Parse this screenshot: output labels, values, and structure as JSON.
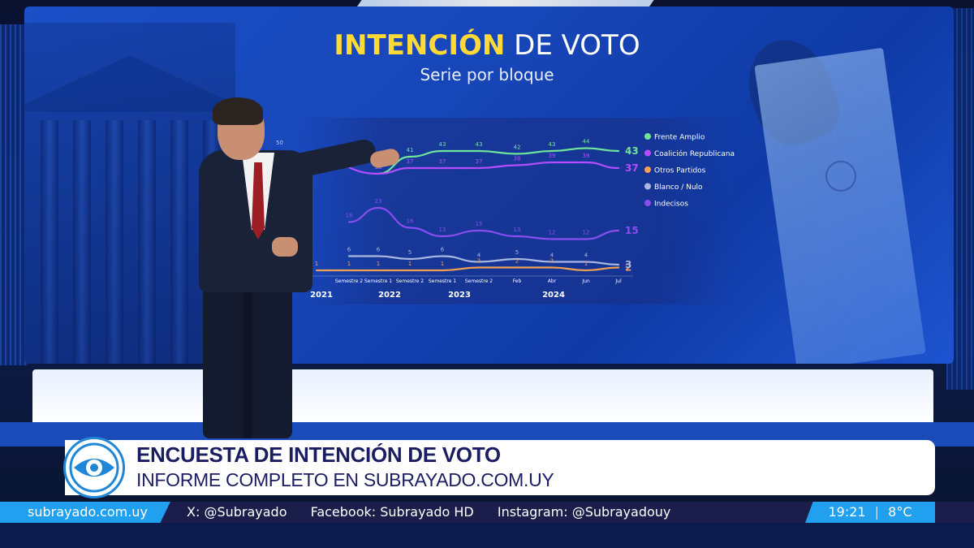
{
  "header": {
    "title_highlight": "INTENCIÓN",
    "title_rest": " DE VOTO",
    "subtitle": "Serie por bloque"
  },
  "lower_third": {
    "title": "ENCUESTA DE INTENCIÓN DE VOTO",
    "subtitle": "INFORME COMPLETO EN SUBRAYADO.COM.UY"
  },
  "ticker": {
    "site": "subrayado.com.uy",
    "items": [
      "X: @Subrayado",
      "Facebook: Subrayado HD",
      "Instagram: @Subrayadouy"
    ],
    "time": "19:21",
    "temperature": "8°C"
  },
  "colors": {
    "frente_amplio": "#6fe59a",
    "coalicion": "#b44dff",
    "otros": "#f0a050",
    "blanco_nulo": "#a9b8e0",
    "indecisos": "#8a4df0",
    "title_highlight": "#ffd936",
    "brand_blue": "#21a0f0",
    "brand_navy": "#1b1d63"
  },
  "chart_data": {
    "type": "line",
    "title": "INTENCIÓN DE VOTO",
    "subtitle": "Serie por bloque",
    "categories": [
      "",
      "Semestre 2",
      "Semestre 1",
      "Semestre 2",
      "Semestre 1",
      "Semestre 2",
      "Feb",
      "Abr",
      "Jun",
      "Jul"
    ],
    "year_labels": [
      "2021",
      "2022",
      "2023",
      "2024"
    ],
    "y_tick_visible": "50",
    "legend_position": "right",
    "series": [
      {
        "name": "Frente Amplio",
        "color": "#6fe59a",
        "values": [
          null,
          null,
          35,
          41,
          43,
          43,
          42,
          43,
          44,
          43
        ],
        "labels": [
          "",
          "",
          "35",
          "41",
          "43",
          "43",
          "42",
          "43",
          "44",
          "43"
        ]
      },
      {
        "name": "Coalición Republicana",
        "color": "#b44dff",
        "values": [
          40,
          null,
          35,
          37,
          37,
          37,
          38,
          39,
          39,
          37
        ],
        "labels": [
          "40",
          "",
          "35",
          "37",
          "37",
          "37",
          "38",
          "39",
          "39",
          "37"
        ]
      },
      {
        "name": "Otros Partidos",
        "color": "#f0a050",
        "values": [
          1,
          1,
          1,
          1,
          1,
          2,
          2,
          2,
          1,
          2
        ],
        "labels": [
          "1",
          "1",
          "1",
          "1",
          "1",
          "2",
          "2",
          "2",
          "1",
          "2"
        ]
      },
      {
        "name": "Blanco / Nulo",
        "color": "#a9b8e0",
        "values": [
          null,
          6,
          6,
          5,
          6,
          4,
          5,
          4,
          4,
          3
        ],
        "labels": [
          "",
          "6",
          "6",
          "5",
          "6",
          "4",
          "5",
          "4",
          "4",
          "3"
        ]
      },
      {
        "name": "Indecisos",
        "color": "#8a4df0",
        "values": [
          null,
          18,
          23,
          16,
          13,
          15,
          13,
          12,
          12,
          15
        ],
        "labels": [
          "",
          "18",
          "23",
          "16",
          "13",
          "15",
          "13",
          "12",
          "12",
          "15"
        ]
      }
    ]
  }
}
